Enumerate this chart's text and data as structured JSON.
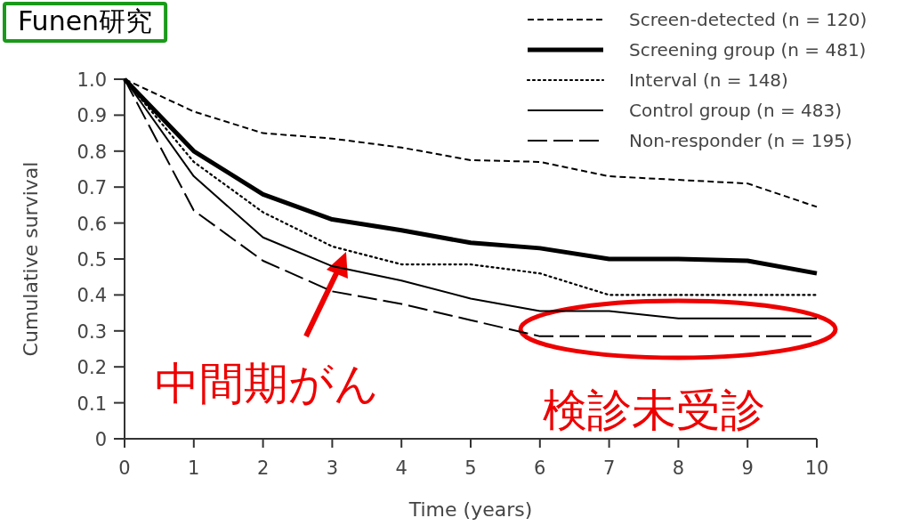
{
  "chart_data": {
    "type": "line",
    "title": "Funen研究",
    "xlabel": "Time (years)",
    "ylabel": "Cumulative survival",
    "x": [
      0,
      1,
      2,
      3,
      4,
      5,
      6,
      7,
      8,
      9,
      10
    ],
    "series": [
      {
        "name": "Screen-detected (n = 120)",
        "color": "#000000",
        "line_style": "dashed",
        "values": [
          1.0,
          0.91,
          0.85,
          0.835,
          0.81,
          0.775,
          0.77,
          0.73,
          0.72,
          0.71,
          0.645
        ]
      },
      {
        "name": "Screening group (n = 481)",
        "color": "#000000",
        "line_style": "solid",
        "values": [
          1.0,
          0.8,
          0.68,
          0.61,
          0.58,
          0.545,
          0.53,
          0.5,
          0.5,
          0.495,
          0.46
        ]
      },
      {
        "name": "Interval (n = 148)",
        "color": "#000000",
        "line_style": "dotted",
        "values": [
          1.0,
          0.77,
          0.63,
          0.535,
          0.485,
          0.485,
          0.46,
          0.4,
          0.4,
          0.4,
          0.4
        ]
      },
      {
        "name": "Control group (n = 483)",
        "color": "#000000",
        "line_style": "solid",
        "values": [
          1.0,
          0.73,
          0.56,
          0.48,
          0.44,
          0.39,
          0.355,
          0.355,
          0.335,
          0.335,
          0.335
        ]
      },
      {
        "name": "Non-responder (n = 195)",
        "color": "#000000",
        "line_style": "dashed",
        "values": [
          1.0,
          0.635,
          0.495,
          0.41,
          0.375,
          0.33,
          0.285,
          0.285,
          0.285,
          0.285,
          0.285
        ]
      }
    ],
    "xlim": [
      0,
      10
    ],
    "ylim": [
      0,
      1
    ],
    "xticks": [
      0,
      1,
      2,
      3,
      4,
      5,
      6,
      7,
      8,
      9,
      10
    ],
    "yticks": [
      0,
      0.1,
      0.2,
      0.3,
      0.4,
      0.5,
      0.6,
      0.7,
      0.8,
      0.9,
      {
        "value": 1,
        "label": "1.0"
      }
    ],
    "legend": "top right",
    "annotations": [
      {
        "text": "中間期がん",
        "x": 3.2,
        "y": 0.52
      },
      "検診未受診"
    ]
  }
}
